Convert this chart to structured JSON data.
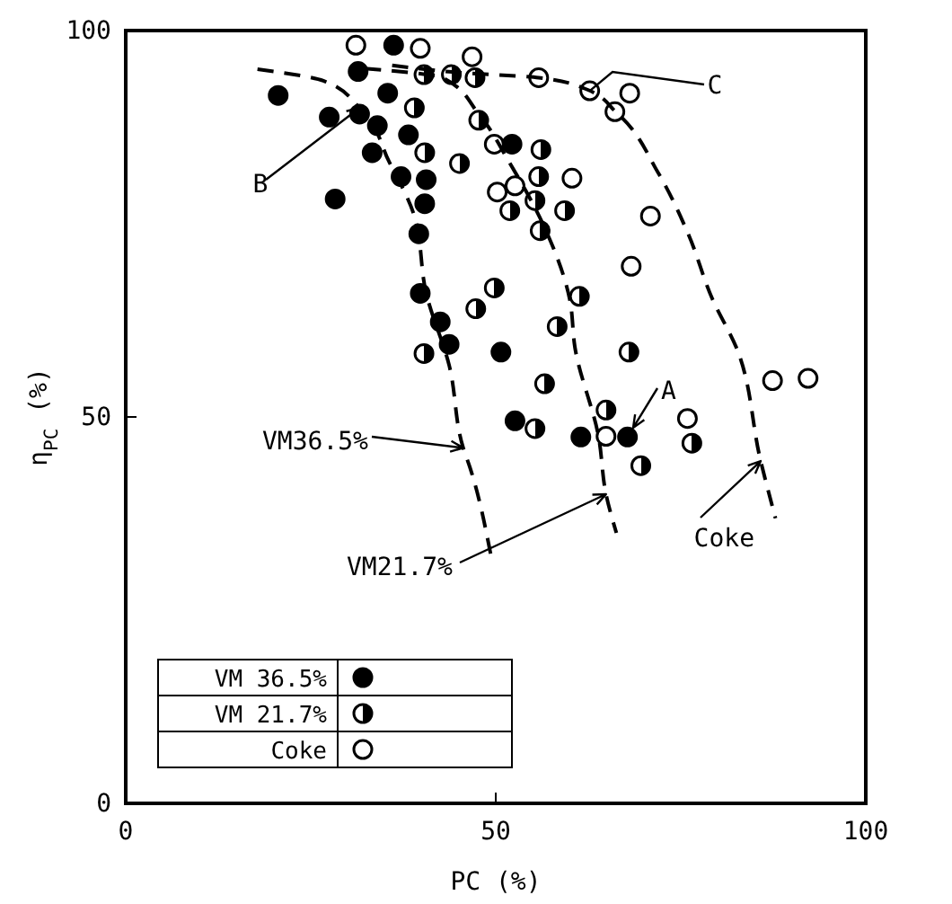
{
  "chart_data": {
    "type": "scatter",
    "xlabel": "PC (%)",
    "ylabel": "η$_{PC}$ (%)",
    "xlim": [
      0,
      100
    ],
    "ylim": [
      0,
      100
    ],
    "xticks": [
      0,
      50,
      100
    ],
    "yticks": [
      0,
      50,
      100
    ],
    "grid": false,
    "legend": "bottom left",
    "marker": "circle",
    "series": [
      {
        "name": "VM 36.5%",
        "color": "#000000",
        "x": [
          36.2,
          31.4,
          20.6,
          27.5,
          31.6,
          35.4,
          34,
          38.2,
          33.3,
          37.2,
          40.6,
          40.4,
          28.3,
          39.6,
          39.8,
          52.2,
          42.5,
          43.7,
          50.7,
          52.6,
          61.5,
          67.8
        ],
        "values": [
          98.1,
          94.7,
          91.6,
          88.8,
          89.2,
          91.9,
          87.7,
          86.5,
          84.2,
          81.1,
          80.7,
          77.6,
          78.2,
          73.7,
          66,
          85.3,
          62.3,
          59.4,
          58.4,
          49.5,
          47.4,
          47.4
        ]
      },
      {
        "name": "VM 21.7%",
        "color": "#000000",
        "x": [
          40.3,
          47.2,
          44,
          39,
          47.7,
          40.4,
          45.1,
          56.1,
          55.8,
          51.9,
          55.3,
          59.3,
          56,
          49.8,
          61.3,
          47.3,
          40.3,
          58.3,
          56.6,
          55.3,
          68,
          64.9,
          76.5,
          69.6
        ],
        "values": [
          94.3,
          93.9,
          94.3,
          90,
          88.4,
          84.2,
          82.8,
          84.6,
          81.1,
          76.7,
          78,
          76.7,
          74.1,
          66.7,
          65.6,
          64,
          58.2,
          61.7,
          54.3,
          48.5,
          58.4,
          50.9,
          46.6,
          43.7
        ]
      },
      {
        "name": "Coke",
        "color": "#000000",
        "x": [
          31.1,
          39.8,
          46.8,
          55.8,
          62.7,
          68.1,
          66.1,
          60.3,
          70.9,
          68.3,
          50.2,
          52.6,
          49.8,
          87.4,
          92.2,
          75.9,
          64.9
        ],
        "values": [
          98.1,
          97.7,
          96.6,
          93.9,
          92.2,
          91.9,
          89.5,
          80.9,
          76,
          69.5,
          79.1,
          79.9,
          85.3,
          54.7,
          55,
          49.8,
          47.5
        ]
      },
      {
        "type": "line",
        "color": "#000000",
        "line_style": "dashed",
        "marker": "none",
        "x": [
          17.8,
          26.7,
          31.6,
          35.6,
          39,
          40.6,
          43.7,
          45.6,
          46.5,
          49.3
        ],
        "values": [
          95,
          93.5,
          90,
          83,
          76,
          66,
          56.7,
          46,
          43.5,
          32.3
        ]
      },
      {
        "type": "line",
        "color": "#000000",
        "line_style": "dashed",
        "marker": "none",
        "x": [
          32.3,
          42.8,
          47.7,
          51.8,
          56.6,
          60,
          60.7,
          63.9,
          64.9,
          66.3
        ],
        "values": [
          95.1,
          93.9,
          89.2,
          83,
          74.5,
          65.2,
          59,
          47.4,
          40,
          35
        ]
      },
      {
        "type": "line",
        "color": "#000000",
        "line_style": "dashed",
        "marker": "none",
        "x": [
          36,
          46,
          55.8,
          62,
          66.4,
          72,
          76,
          79.3,
          82.5,
          85.8,
          87.8
        ],
        "values": [
          95.5,
          94.5,
          93.9,
          92.5,
          89.3,
          81.5,
          73.7,
          65.2,
          59,
          44.3,
          36.9
        ]
      }
    ],
    "annotations": [
      {
        "text": "A",
        "x": 67.8,
        "y": 47.4
      },
      {
        "text": "B",
        "x": 31.6,
        "y": 90
      },
      {
        "text": "C",
        "x": 62.7,
        "y": 92.2
      },
      {
        "text": "VM36.5%",
        "x": 45.6,
        "y": 46
      },
      {
        "text": "VM21.7%",
        "x": 64.9,
        "y": 40
      },
      {
        "text": "Coke",
        "x": 85.8,
        "y": 44.3
      }
    ]
  }
}
